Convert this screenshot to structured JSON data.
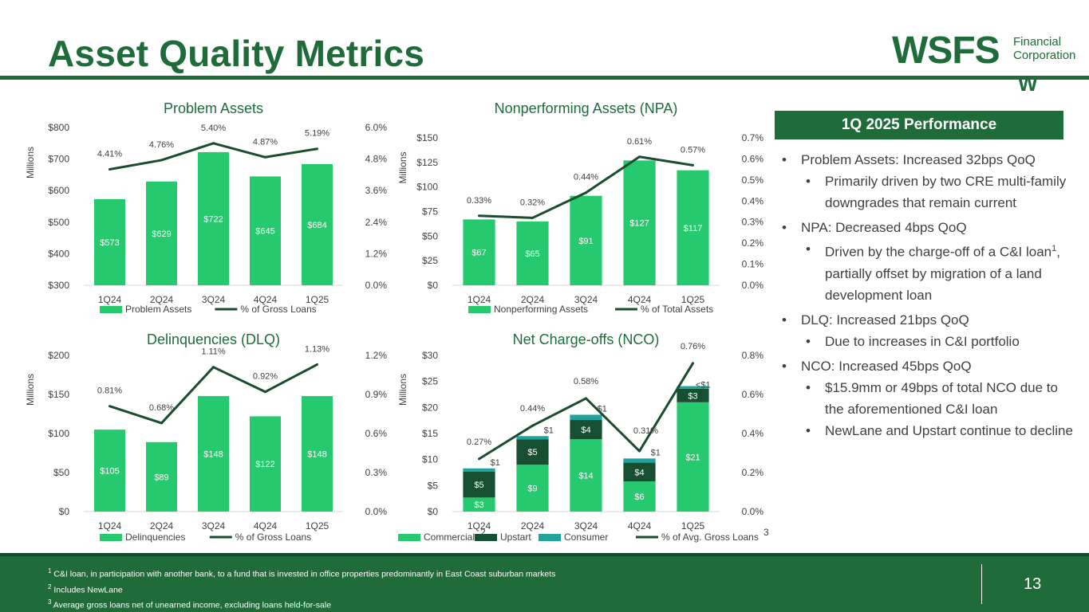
{
  "title": "Asset Quality Metrics",
  "logo": {
    "name": "WSFS",
    "line1": "Financial",
    "line2": "Corporation",
    "mark": "W"
  },
  "colors": {
    "green": "#26c96d",
    "dark_green": "#1f6b3a",
    "line": "#1a4c2e",
    "teal": "#1fa39a",
    "upstart": "#174f33"
  },
  "charts": [
    {
      "id": "problem-assets",
      "title": "Problem Assets",
      "ylabel": "Millions",
      "categories": [
        "1Q24",
        "2Q24",
        "3Q24",
        "4Q24",
        "1Q25"
      ],
      "left_ticks": [
        "$300",
        "$400",
        "$500",
        "$600",
        "$700",
        "$800"
      ],
      "right_ticks": [
        "0.0%",
        "1.2%",
        "2.4%",
        "3.6%",
        "4.8%",
        "6.0%"
      ],
      "bar_labels": [
        "$573",
        "$629",
        "$722",
        "$645",
        "$684"
      ],
      "line_labels": [
        "4.41%",
        "4.76%",
        "5.40%",
        "4.87%",
        "5.19%"
      ],
      "legend": [
        "Problem Assets",
        "% of Gross Loans"
      ]
    },
    {
      "id": "npa",
      "title": "Nonperforming Assets (NPA)",
      "ylabel": "Millions",
      "categories": [
        "1Q24",
        "2Q24",
        "3Q24",
        "4Q24",
        "1Q25"
      ],
      "left_ticks": [
        "$0",
        "$25",
        "$50",
        "$75",
        "$100",
        "$125",
        "$150"
      ],
      "right_ticks": [
        "0.0%",
        "0.1%",
        "0.2%",
        "0.3%",
        "0.4%",
        "0.5%",
        "0.6%",
        "0.7%"
      ],
      "bar_labels": [
        "$67",
        "$65",
        "$91",
        "$127",
        "$117"
      ],
      "line_labels": [
        "0.33%",
        "0.32%",
        "0.44%",
        "0.61%",
        "0.57%"
      ],
      "legend": [
        "Nonperforming Assets",
        "% of Total Assets"
      ]
    },
    {
      "id": "dlq",
      "title": "Delinquencies (DLQ)",
      "ylabel": "Millions",
      "categories": [
        "1Q24",
        "2Q24",
        "3Q24",
        "4Q24",
        "1Q25"
      ],
      "left_ticks": [
        "$0",
        "$50",
        "$100",
        "$150",
        "$200"
      ],
      "right_ticks": [
        "0.0%",
        "0.3%",
        "0.6%",
        "0.9%",
        "1.2%"
      ],
      "bar_labels": [
        "$105",
        "$89",
        "$148",
        "$122",
        "$148"
      ],
      "line_labels": [
        "0.81%",
        "0.68%",
        "1.11%",
        "0.92%",
        "1.13%"
      ],
      "legend": [
        "Delinquencies",
        "% of Gross Loans"
      ]
    },
    {
      "id": "nco",
      "title": "Net Charge-offs (NCO)",
      "ylabel": "Millions",
      "categories": [
        "1Q24",
        "2Q24",
        "3Q24",
        "4Q24",
        "1Q25"
      ],
      "left_ticks": [
        "$0",
        "$5",
        "$10",
        "$15",
        "$20",
        "$25",
        "$30"
      ],
      "right_ticks": [
        "0.0%",
        "0.2%",
        "0.4%",
        "0.6%",
        "0.8%"
      ],
      "commercial_labels": [
        "$3",
        "$9",
        "$14",
        "$6",
        "$21"
      ],
      "upstart_labels": [
        "$5",
        "$5",
        "$4",
        "$4",
        "$3"
      ],
      "consumer_labels": [
        "$1",
        "$1",
        "$1",
        "$1",
        "<$1"
      ],
      "line_labels": [
        "0.27%",
        "0.44%",
        "0.58%",
        "0.31%",
        "0.76%"
      ],
      "legend": [
        "Commercial",
        "Upstart",
        "Consumer",
        "% of Avg. Gross Loans"
      ],
      "legend_sup": [
        "2",
        "3"
      ]
    }
  ],
  "chart_data": [
    {
      "type": "bar",
      "title": "Problem Assets",
      "categories": [
        "1Q24",
        "2Q24",
        "3Q24",
        "4Q24",
        "1Q25"
      ],
      "ylim": [
        300,
        800
      ],
      "y2lim": [
        0,
        6.0
      ],
      "series": [
        {
          "name": "Problem Assets",
          "axis": "left",
          "values": [
            573,
            629,
            722,
            645,
            684
          ]
        },
        {
          "name": "% of Gross Loans",
          "axis": "right",
          "kind": "line",
          "values": [
            4.41,
            4.76,
            5.4,
            4.87,
            5.19
          ]
        }
      ]
    },
    {
      "type": "bar",
      "title": "Nonperforming Assets (NPA)",
      "categories": [
        "1Q24",
        "2Q24",
        "3Q24",
        "4Q24",
        "1Q25"
      ],
      "ylim": [
        0,
        150
      ],
      "y2lim": [
        0,
        0.7
      ],
      "series": [
        {
          "name": "Nonperforming Assets",
          "axis": "left",
          "values": [
            67,
            65,
            91,
            127,
            117
          ]
        },
        {
          "name": "% of Total Assets",
          "axis": "right",
          "kind": "line",
          "values": [
            0.33,
            0.32,
            0.44,
            0.61,
            0.57
          ]
        }
      ]
    },
    {
      "type": "bar",
      "title": "Delinquencies (DLQ)",
      "categories": [
        "1Q24",
        "2Q24",
        "3Q24",
        "4Q24",
        "1Q25"
      ],
      "ylim": [
        0,
        200
      ],
      "y2lim": [
        0,
        1.2
      ],
      "series": [
        {
          "name": "Delinquencies",
          "axis": "left",
          "values": [
            105,
            89,
            148,
            122,
            148
          ]
        },
        {
          "name": "% of Gross Loans",
          "axis": "right",
          "kind": "line",
          "values": [
            0.81,
            0.68,
            1.11,
            0.92,
            1.13
          ]
        }
      ]
    },
    {
      "type": "bar",
      "stacked": true,
      "title": "Net Charge-offs (NCO)",
      "categories": [
        "1Q24",
        "2Q24",
        "3Q24",
        "4Q24",
        "1Q25"
      ],
      "ylim": [
        0,
        30
      ],
      "y2lim": [
        0,
        0.8
      ],
      "series": [
        {
          "name": "Commercial",
          "axis": "left",
          "values": [
            2.7,
            9.0,
            13.9,
            5.8,
            21.0
          ]
        },
        {
          "name": "Upstart",
          "axis": "left",
          "values": [
            5.0,
            4.9,
            3.7,
            3.6,
            2.6
          ]
        },
        {
          "name": "Consumer",
          "axis": "left",
          "values": [
            0.6,
            0.6,
            1.0,
            0.8,
            0.5
          ]
        },
        {
          "name": "% of Avg. Gross Loans",
          "axis": "right",
          "kind": "line",
          "values": [
            0.27,
            0.44,
            0.58,
            0.31,
            0.76
          ]
        }
      ]
    }
  ],
  "performance": {
    "header": "1Q 2025 Performance",
    "items": [
      {
        "level": 1,
        "text": "Problem Assets: Increased 32bps QoQ"
      },
      {
        "level": 2,
        "text": "Primarily driven by two CRE multi-family downgrades that remain current"
      },
      {
        "level": 1,
        "text": "NPA: Decreased 4bps QoQ"
      },
      {
        "level": 2,
        "text": "Driven by the charge-off of a C&I loan",
        "sup": "1",
        "tail": ", partially offset by migration of a land development loan"
      },
      {
        "level": 1,
        "text": "DLQ: Increased 21bps QoQ"
      },
      {
        "level": 2,
        "text": "Due to increases in C&I portfolio"
      },
      {
        "level": 1,
        "text": "NCO: Increased 45bps QoQ"
      },
      {
        "level": 2,
        "text": "$15.9mm or 49bps of total NCO due to the aforementioned C&I loan"
      },
      {
        "level": 2,
        "text": "NewLane and Upstart continue to decline"
      }
    ]
  },
  "footnotes": [
    {
      "num": "1",
      "text": "C&I loan, in participation with another bank, to a fund that is invested in office properties predominantly in East Coast suburban markets"
    },
    {
      "num": "2",
      "text": "Includes NewLane"
    },
    {
      "num": "3",
      "text": "Average gross loans net of unearned income, excluding loans held-for-sale"
    }
  ],
  "page_number": "13"
}
